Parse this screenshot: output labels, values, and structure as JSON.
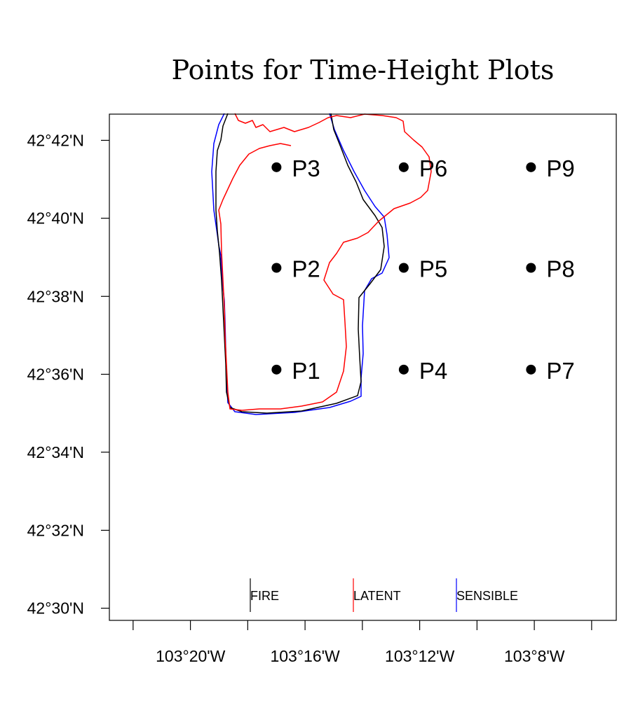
{
  "title": "Points for Time-Height Plots",
  "chart_data": {
    "type": "map",
    "title": "Points for Time-Height Plots",
    "y_ticks": [
      {
        "label": "42°42'N",
        "lat": 42.7
      },
      {
        "label": "42°40'N",
        "lat": 42.6667
      },
      {
        "label": "42°38'N",
        "lat": 42.6333
      },
      {
        "label": "42°36'N",
        "lat": 42.6
      },
      {
        "label": "42°34'N",
        "lat": 42.5667
      },
      {
        "label": "42°32'N",
        "lat": 42.5333
      },
      {
        "label": "42°30'N",
        "lat": 42.5
      }
    ],
    "x_ticks": [
      {
        "label": "103°20'W",
        "lon": -103.3333
      },
      {
        "label": "103°16'W",
        "lon": -103.2667
      },
      {
        "label": "103°12'W",
        "lon": -103.2
      },
      {
        "label": "103°8'W",
        "lon": -103.1333
      }
    ],
    "points": [
      {
        "name": "P1",
        "lon": -103.2833,
        "lat": 42.602
      },
      {
        "name": "P2",
        "lon": -103.2833,
        "lat": 42.6455
      },
      {
        "name": "P3",
        "lon": -103.2833,
        "lat": 42.6885
      },
      {
        "name": "P4",
        "lon": -103.2093,
        "lat": 42.602
      },
      {
        "name": "P5",
        "lon": -103.2093,
        "lat": 42.6455
      },
      {
        "name": "P6",
        "lon": -103.2093,
        "lat": 42.6885
      },
      {
        "name": "P7",
        "lon": -103.1353,
        "lat": 42.602
      },
      {
        "name": "P8",
        "lon": -103.1353,
        "lat": 42.6455
      },
      {
        "name": "P9",
        "lon": -103.1353,
        "lat": 42.6885
      }
    ],
    "legend": [
      {
        "label": "FIRE",
        "color": "#000000"
      },
      {
        "label": "LATENT",
        "color": "#ff0000"
      },
      {
        "label": "SENSIBLE",
        "color": "#0000ff"
      }
    ]
  }
}
